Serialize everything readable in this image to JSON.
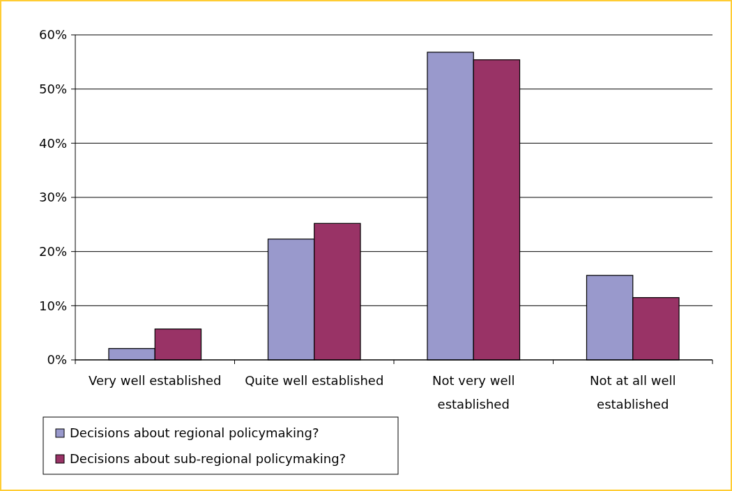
{
  "chart_data": {
    "type": "bar",
    "categories": [
      "Very well established",
      "Quite well established",
      "Not very well established",
      "Not at all well established"
    ],
    "series": [
      {
        "name": "Decisions about regional policymaking?",
        "color": "#9999cc",
        "values": [
          2.1,
          22.3,
          56.8,
          15.6
        ]
      },
      {
        "name": "Decisions about sub-regional policymaking?",
        "color": "#993366",
        "values": [
          5.7,
          25.2,
          55.4,
          11.5
        ]
      }
    ],
    "ylim": [
      0,
      60
    ],
    "yticks": [
      {
        "value": 0,
        "label": "0%"
      },
      {
        "value": 10,
        "label": "10%"
      },
      {
        "value": 20,
        "label": "20%"
      },
      {
        "value": 30,
        "label": "30%"
      },
      {
        "value": 40,
        "label": "40%"
      },
      {
        "value": 50,
        "label": "50%"
      },
      {
        "value": 60,
        "label": "60%"
      }
    ],
    "grid": "y",
    "legend": "bottom left"
  }
}
